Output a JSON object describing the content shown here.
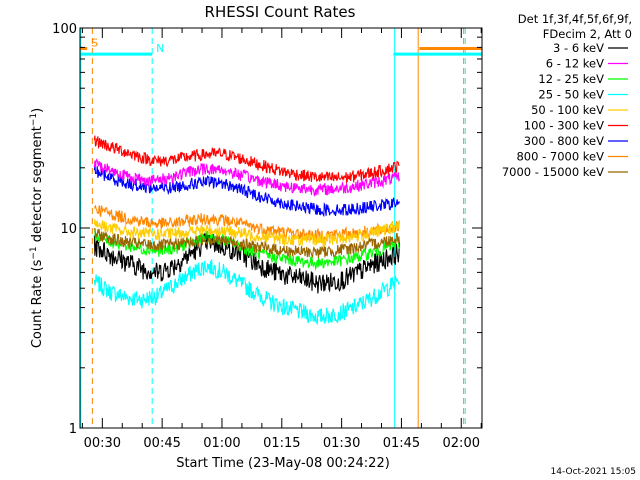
{
  "chart_data": {
    "type": "line",
    "title": "RHESSI Count Rates",
    "xlabel": "Start Time (23-May-08 00:24:22)",
    "ylabel": "Count Rate (s",
    "ylabel_sup": "−1",
    "ylabel_tail": " detector segment",
    "ylabel_sup2": "−1",
    "ylabel_close": ")",
    "yscale": "log",
    "ylim": [
      1,
      100
    ],
    "xlim": [
      24.4,
      125.2
    ],
    "x_unit": "minutes after 00:00 UT",
    "xticks": [
      {
        "value": 30,
        "label": "00:30"
      },
      {
        "value": 45,
        "label": "00:45"
      },
      {
        "value": 60,
        "label": "01:00"
      },
      {
        "value": 75,
        "label": "01:15"
      },
      {
        "value": 90,
        "label": "01:30"
      },
      {
        "value": 105,
        "label": "01:45"
      },
      {
        "value": 120,
        "label": "02:00"
      }
    ],
    "yticks": [
      {
        "value": 1,
        "label": "1"
      },
      {
        "value": 10,
        "label": "10"
      },
      {
        "value": 100,
        "label": "100"
      }
    ],
    "legend_header": [
      "Det 1f,3f,4f,5f,6f,9f,",
      "FDecim 2, Att 0"
    ],
    "series": [
      {
        "name": "3 - 6 keV",
        "color": "#000000",
        "x": [
          28,
          32,
          36,
          40,
          44,
          48,
          52,
          56,
          60,
          64,
          68,
          72,
          76,
          80,
          84,
          88,
          92,
          96,
          100,
          104.5
        ],
        "y": [
          8.2,
          7.4,
          6.8,
          6.3,
          6.0,
          6.5,
          7.4,
          8.6,
          8.2,
          7.6,
          6.8,
          6.2,
          5.8,
          5.6,
          5.3,
          5.4,
          5.7,
          6.3,
          6.9,
          7.6
        ]
      },
      {
        "name": "6 - 12 keV",
        "color": "#ff00ff",
        "x": [
          28,
          32,
          36,
          40,
          44,
          48,
          52,
          56,
          60,
          64,
          68,
          72,
          76,
          80,
          84,
          88,
          92,
          96,
          100,
          104.5
        ],
        "y": [
          21,
          19.5,
          18.2,
          17.5,
          17.3,
          18.2,
          19.2,
          19.8,
          19.6,
          18.6,
          17.6,
          16.8,
          16.2,
          15.8,
          15.6,
          15.7,
          16.0,
          16.6,
          17.2,
          18.0
        ]
      },
      {
        "name": "12 - 25 keV",
        "color": "#00ff00",
        "x": [
          28,
          32,
          36,
          40,
          44,
          48,
          52,
          56,
          60,
          64,
          68,
          72,
          76,
          80,
          84,
          88,
          92,
          96,
          100,
          104.5
        ],
        "y": [
          9.2,
          8.6,
          8.2,
          7.9,
          7.7,
          7.9,
          8.4,
          9.0,
          8.8,
          8.2,
          7.6,
          7.2,
          7.0,
          6.8,
          6.7,
          6.8,
          7.0,
          7.4,
          7.8,
          8.4
        ]
      },
      {
        "name": "25 - 50 keV",
        "color": "#00ffff",
        "x": [
          28,
          32,
          36,
          40,
          44,
          48,
          52,
          56,
          60,
          64,
          68,
          72,
          76,
          80,
          84,
          88,
          92,
          96,
          100,
          104.5
        ],
        "y": [
          5.4,
          4.8,
          4.5,
          4.4,
          4.6,
          5.2,
          5.9,
          6.5,
          6.1,
          5.4,
          4.8,
          4.3,
          4.0,
          3.8,
          3.6,
          3.7,
          3.9,
          4.3,
          4.8,
          5.5
        ]
      },
      {
        "name": "50 - 100 keV",
        "color": "#ffcc00",
        "x": [
          28,
          32,
          36,
          40,
          44,
          48,
          52,
          56,
          60,
          64,
          68,
          72,
          76,
          80,
          84,
          88,
          92,
          96,
          100,
          104.5
        ],
        "y": [
          10.6,
          10.0,
          9.6,
          9.4,
          9.3,
          9.4,
          9.6,
          9.8,
          9.7,
          9.5,
          9.2,
          9.0,
          8.8,
          8.7,
          8.7,
          8.8,
          9.0,
          9.3,
          9.7,
          10.3
        ]
      },
      {
        "name": "100 - 300 keV",
        "color": "#ff0000",
        "x": [
          28,
          32,
          36,
          40,
          44,
          48,
          52,
          56,
          60,
          64,
          68,
          72,
          76,
          80,
          84,
          88,
          92,
          96,
          100,
          104.5
        ],
        "y": [
          27.5,
          25.5,
          24,
          22.5,
          21.6,
          22.0,
          22.8,
          23.4,
          23.6,
          22.5,
          21.2,
          20.0,
          19.0,
          18.4,
          17.9,
          17.8,
          18.0,
          18.6,
          19.4,
          20.5
        ]
      },
      {
        "name": "300 - 800 keV",
        "color": "#0000ff",
        "x": [
          28,
          32,
          36,
          40,
          44,
          48,
          52,
          56,
          60,
          64,
          68,
          72,
          76,
          80,
          84,
          88,
          92,
          96,
          100,
          104.5
        ],
        "y": [
          19.5,
          17.8,
          16.8,
          16.2,
          15.8,
          16.0,
          16.6,
          17.0,
          16.8,
          15.8,
          14.8,
          13.9,
          13.2,
          12.7,
          12.4,
          12.3,
          12.4,
          12.7,
          13.0,
          13.4
        ]
      },
      {
        "name": "800 - 7000 keV",
        "color": "#ff8800",
        "x": [
          28,
          32,
          36,
          40,
          44,
          48,
          52,
          56,
          60,
          64,
          68,
          72,
          76,
          80,
          84,
          88,
          92,
          96,
          100,
          104.5
        ],
        "y": [
          12.6,
          11.8,
          11.2,
          10.8,
          10.5,
          10.6,
          10.9,
          11.2,
          11.0,
          10.6,
          10.1,
          9.8,
          9.5,
          9.3,
          9.2,
          9.3,
          9.4,
          9.6,
          9.8,
          10.2
        ]
      },
      {
        "name": "7000 - 15000 keV",
        "color": "#996600",
        "x": [
          28,
          32,
          36,
          40,
          44,
          48,
          52,
          56,
          60,
          64,
          68,
          72,
          76,
          80,
          84,
          88,
          92,
          96,
          100,
          104.5
        ],
        "y": [
          9.4,
          8.9,
          8.5,
          8.3,
          8.2,
          8.3,
          8.5,
          8.8,
          8.7,
          8.4,
          8.1,
          7.9,
          7.7,
          7.6,
          7.6,
          7.7,
          7.9,
          8.2,
          8.5,
          9.0
        ]
      }
    ],
    "flags": [
      {
        "label": "S",
        "color": "#ff8800",
        "value": 79,
        "x_ranges": [
          [
            24.4,
            26.2
          ],
          [
            109.5,
            125.2
          ]
        ]
      },
      {
        "label": "N",
        "color": "#00ffff",
        "value": 74,
        "x_ranges": [
          [
            24.4,
            42.5
          ],
          [
            103.0,
            125.2
          ]
        ]
      }
    ],
    "vertical_markers": [
      {
        "x": 24.6,
        "color": "#00ffff",
        "style": "solid"
      },
      {
        "x": 27.5,
        "color": "#ff8800",
        "style": "dashed"
      },
      {
        "x": 42.5,
        "color": "#00ffff",
        "style": "dashed"
      },
      {
        "x": 103.3,
        "color": "#00ffff",
        "style": "solid"
      },
      {
        "x": 109.2,
        "color": "#ff8800",
        "style": "solid"
      },
      {
        "x": 120.6,
        "color": "#ff8800",
        "style": "dashed"
      },
      {
        "x": 121.0,
        "color": "#00ffff",
        "style": "dashed"
      }
    ],
    "footer_date": "14-Oct-2021 15:05"
  }
}
